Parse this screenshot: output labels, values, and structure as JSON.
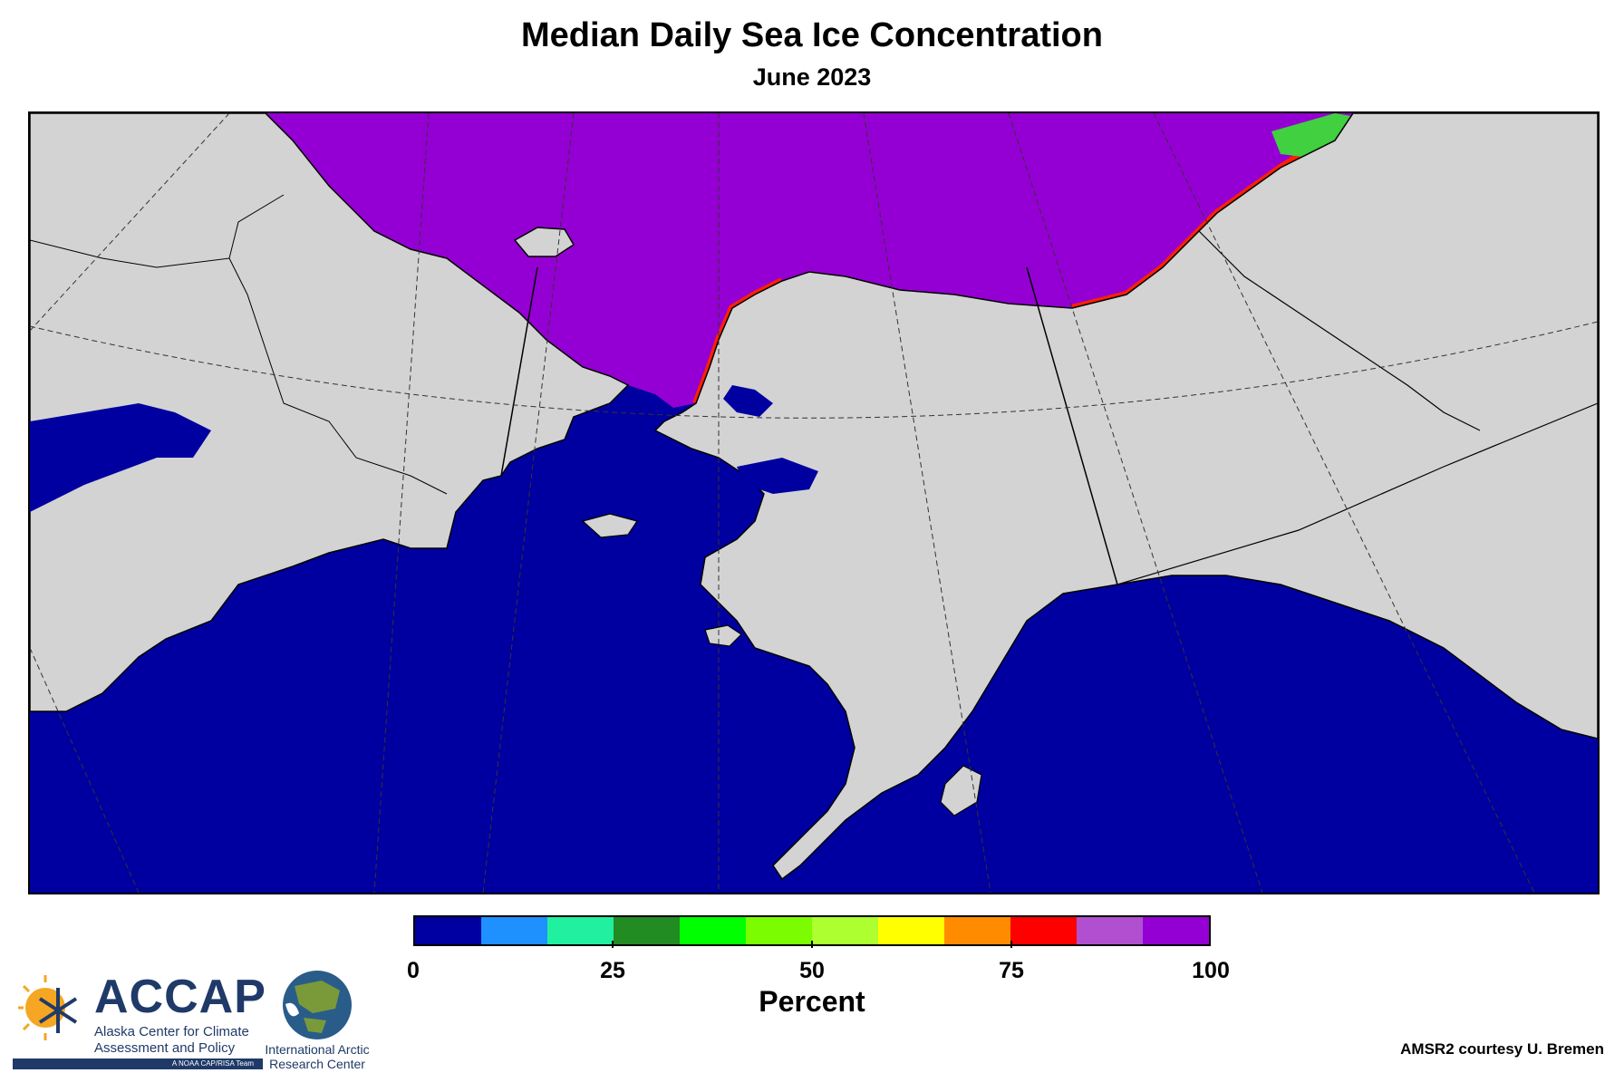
{
  "header": {
    "title": "Median Daily Sea Ice Concentration",
    "subtitle": "June 2023"
  },
  "map": {
    "ocean_color": "#0000a0",
    "land_color": "#d3d3d3",
    "ice_color_high": "#9400d3",
    "border_color": "#000000"
  },
  "colorbar": {
    "label": "Percent",
    "min": 0,
    "max": 100,
    "bins": [
      "#0000a0",
      "#1e90ff",
      "#20f0a0",
      "#228b22",
      "#00ff00",
      "#7cfc00",
      "#adff2f",
      "#ffff00",
      "#ff8c00",
      "#ff0000",
      "#b050d0",
      "#9400d3"
    ],
    "ticks": [
      {
        "value": 0,
        "label": "0"
      },
      {
        "value": 25,
        "label": "25"
      },
      {
        "value": 50,
        "label": "50"
      },
      {
        "value": 75,
        "label": "75"
      },
      {
        "value": 100,
        "label": "100"
      }
    ]
  },
  "footer": {
    "credit": "AMSR2 courtesy U. Bremen",
    "accap_name": "ACCAP",
    "accap_line1": "Alaska Center for Climate",
    "accap_line2": "Assessment and Policy",
    "accap_tag": "A NOAA CAP/RISA Team",
    "iarc_line1": "International Arctic",
    "iarc_line2": "Research Center"
  }
}
